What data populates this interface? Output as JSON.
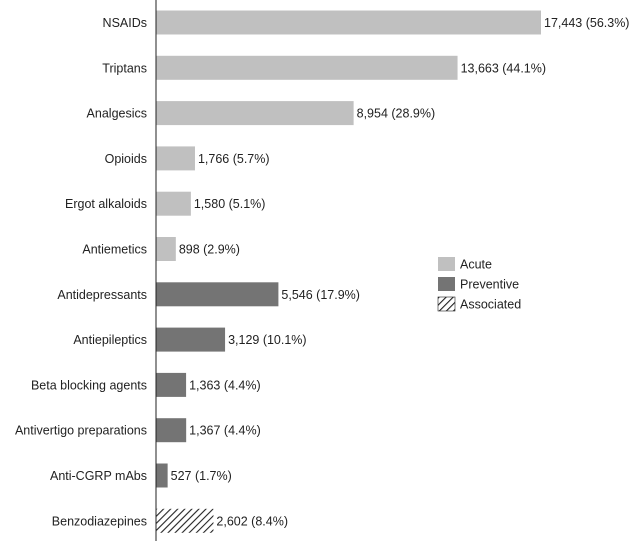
{
  "chart_data": {
    "type": "bar",
    "orientation": "horizontal",
    "categories": [
      "NSAIDs",
      "Triptans",
      "Analgesics",
      "Opioids",
      "Ergot alkaloids",
      "Antiemetics",
      "Antidepressants",
      "Antiepileptics",
      "Beta blocking agents",
      "Antivertigo preparations",
      "Anti-CGRP mAbs",
      "Benzodiazepines"
    ],
    "values": [
      17443,
      13663,
      8954,
      1766,
      1580,
      898,
      5546,
      3129,
      1363,
      1367,
      527,
      2602
    ],
    "percents": [
      56.3,
      44.1,
      28.9,
      5.7,
      5.1,
      2.9,
      17.9,
      10.1,
      4.4,
      4.4,
      1.7,
      8.4
    ],
    "data_labels": [
      "17,443 (56.3%)",
      "13,663 (44.1%)",
      "8,954 (28.9%)",
      "1,766 (5.7%)",
      "1,580 (5.1%)",
      "898 (2.9%)",
      "5,546 (17.9%)",
      "3,129 (10.1%)",
      "1,363 (4.4%)",
      "1,367 (4.4%)",
      "527 (1.7%)",
      "2,602 (8.4%)"
    ],
    "groups": [
      "Acute",
      "Acute",
      "Acute",
      "Acute",
      "Acute",
      "Acute",
      "Preventive",
      "Preventive",
      "Preventive",
      "Preventive",
      "Preventive",
      "Associated"
    ],
    "legend": [
      {
        "name": "Acute",
        "color": "#c0c0c0",
        "pattern": "solid"
      },
      {
        "name": "Preventive",
        "color": "#747474",
        "pattern": "solid"
      },
      {
        "name": "Associated",
        "color": "#222222",
        "pattern": "diagonal-hatch"
      }
    ],
    "legend_position": "right",
    "xlim": [
      0,
      17443
    ],
    "grid": false,
    "title": "",
    "xlabel": "",
    "ylabel": ""
  }
}
